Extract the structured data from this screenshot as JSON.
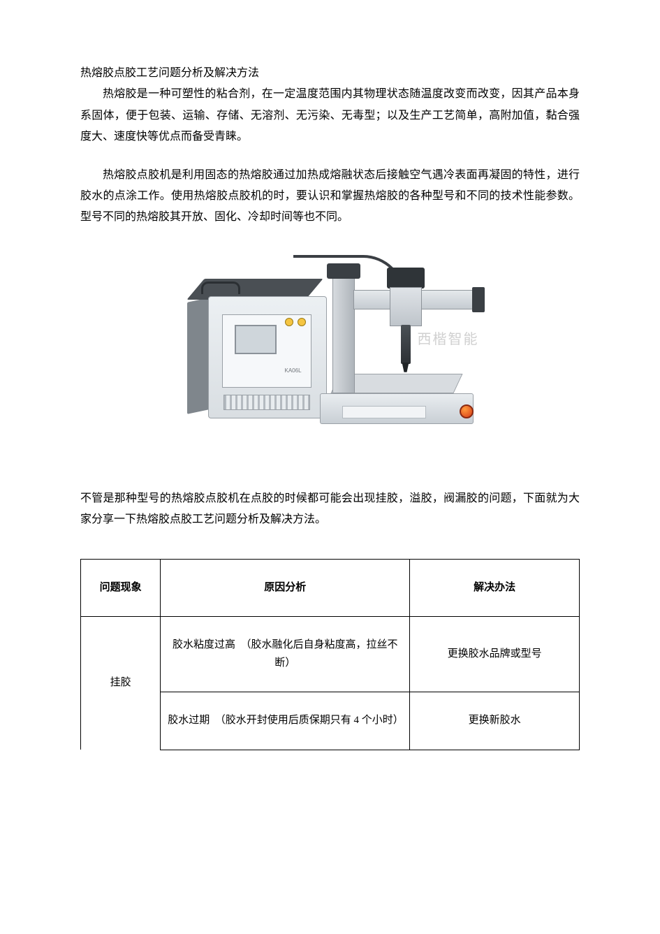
{
  "title": "热熔胶点胶工艺问题分析及解决方法",
  "para1": "热熔胶是一种可塑性的粘合剂，在一定温度范围内其物理状态随温度改变而改变，因其产品本身系固体，便于包装、运输、存储、无溶剂、无污染、无毒型；以及生产工艺简单，高附加值，黏合强度大、速度快等优点而备受青睐。",
  "para2": "热熔胶点胶机是利用固态的热熔胶通过加热成熔融状态后接触空气遇冷表面再凝固的特性，进行胶水的点涂工作。使用热熔胶点胶机的时，要认识和掌握热熔胶的各种型号和不同的技术性能参数。型号不同的热熔胶其开放、固化、冷却时间等也不同。",
  "para3": "不管是那种型号的热熔胶点胶机在点胶的时候都可能会出现挂胶，溢胶，阀漏胶的问题，下面就为大家分享一下热熔胶点胶工艺问题分析及解决方法。",
  "figure": {
    "watermark_text": "西楷智能",
    "cabinet_label": "KA06L",
    "colors": {
      "metal_light": "#e9edf0",
      "metal_dark": "#3a3f44",
      "knob": "#f5c542",
      "estop": "#d63b17"
    }
  },
  "table": {
    "headers": {
      "h1": "问题现象",
      "h2": "原因分析",
      "h3": "解决办法"
    },
    "phenomenon": "挂胶",
    "rows": [
      {
        "cause": "胶水粘度过高　（胶水融化后自身粘度高，拉丝不断）",
        "solution": "更换胶水品牌或型号"
      },
      {
        "cause": "胶水过期　（胶水开封使用后质保期只有 4 个小时）",
        "solution": "更换新胶水"
      }
    ]
  }
}
